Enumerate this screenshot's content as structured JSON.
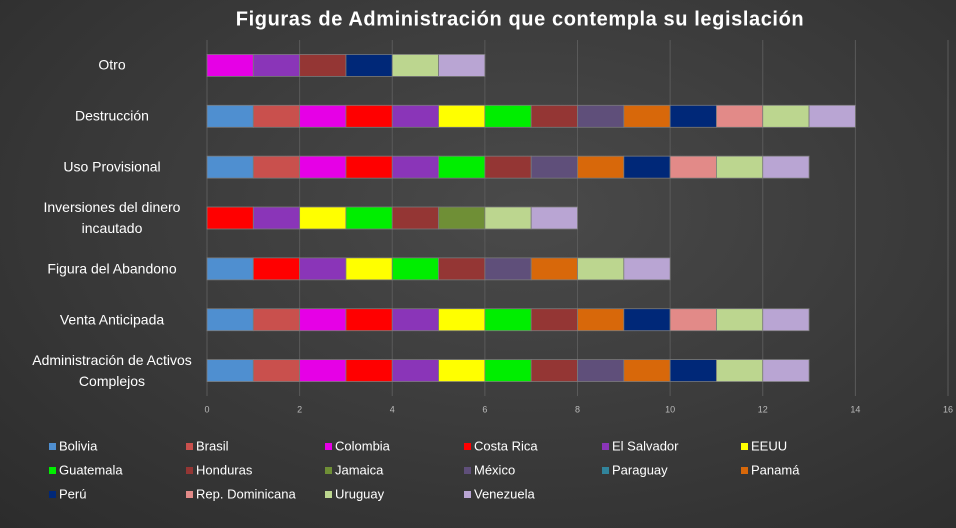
{
  "chart_data": {
    "type": "stacked-bar-horizontal",
    "title": "Figuras de Administración que contempla su legislación",
    "categories": [
      "Otro",
      "Destrucción",
      "Uso Provisional",
      "Inversiones del dinero incautado",
      "Figura del Abandono",
      "Venta Anticipada",
      "Administración de Activos Complejos"
    ],
    "xlim": [
      0,
      16
    ],
    "xticks": [
      0,
      2,
      4,
      6,
      8,
      10,
      12,
      14,
      16
    ],
    "grid": true,
    "legend": "bottom",
    "series": [
      {
        "name": "Bolivia",
        "color": "#4f8fd0",
        "values": [
          0,
          1,
          1,
          0,
          1,
          1,
          1
        ]
      },
      {
        "name": "Brasil",
        "color": "#c9504d",
        "values": [
          0,
          1,
          1,
          0,
          0,
          1,
          1
        ]
      },
      {
        "name": "Colombia",
        "color": "#e600e6",
        "values": [
          1,
          1,
          1,
          0,
          0,
          1,
          1
        ]
      },
      {
        "name": "Costa Rica",
        "color": "#ff0000",
        "values": [
          0,
          1,
          1,
          1,
          1,
          1,
          1
        ]
      },
      {
        "name": "El Salvador",
        "color": "#8a35b8",
        "values": [
          1,
          1,
          1,
          1,
          1,
          1,
          1
        ]
      },
      {
        "name": "EEUU",
        "color": "#ffff00",
        "values": [
          0,
          1,
          0,
          1,
          1,
          1,
          1
        ]
      },
      {
        "name": "Guatemala",
        "color": "#00ee00",
        "values": [
          0,
          1,
          1,
          1,
          1,
          1,
          1
        ]
      },
      {
        "name": "Honduras",
        "color": "#943634",
        "values": [
          1,
          1,
          1,
          1,
          1,
          1,
          1
        ]
      },
      {
        "name": "Jamaica",
        "color": "#6f8f36",
        "values": [
          0,
          0,
          0,
          1,
          0,
          0,
          0
        ]
      },
      {
        "name": "México",
        "color": "#5f4f7a",
        "values": [
          0,
          1,
          1,
          0,
          1,
          0,
          1
        ]
      },
      {
        "name": "Paraguay",
        "color": "#31849b",
        "values": [
          0,
          0,
          0,
          0,
          0,
          0,
          0
        ]
      },
      {
        "name": "Panamá",
        "color": "#d8680a",
        "values": [
          0,
          1,
          1,
          0,
          1,
          1,
          1
        ]
      },
      {
        "name": "Perú",
        "color": "#002878",
        "values": [
          1,
          1,
          1,
          0,
          0,
          1,
          1
        ]
      },
      {
        "name": "Rep. Dominicana",
        "color": "#e28a88",
        "values": [
          0,
          1,
          1,
          0,
          0,
          1,
          0
        ]
      },
      {
        "name": "Uruguay",
        "color": "#bcd68f",
        "values": [
          1,
          1,
          1,
          1,
          1,
          1,
          1
        ]
      },
      {
        "name": "Venezuela",
        "color": "#b9a5d3",
        "values": [
          1,
          1,
          1,
          1,
          1,
          1,
          1
        ]
      }
    ]
  }
}
